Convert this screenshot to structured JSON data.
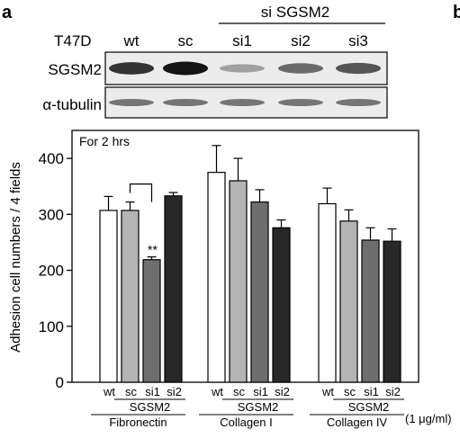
{
  "panel_labels": {
    "a": "a",
    "b": "b"
  },
  "blot": {
    "cell_line": "T47D",
    "lane_labels": [
      "wt",
      "sc",
      "si1",
      "si2",
      "si3"
    ],
    "group_label": "si SGSM2",
    "rows": [
      {
        "label": "SGSM2",
        "band_intensity": [
          0.85,
          1.0,
          0.35,
          0.6,
          0.7
        ]
      },
      {
        "label": "α-tubulin",
        "band_intensity": [
          0.55,
          0.55,
          0.55,
          0.55,
          0.55
        ]
      }
    ]
  },
  "chart_data": {
    "type": "bar",
    "title": "For 2 hrs",
    "ylabel": "Adhesion cell numbers / 4 fields",
    "ylim": [
      0,
      450
    ],
    "yticks": [
      "0",
      "100",
      "200",
      "300",
      "400"
    ],
    "unit_note": "(1 μg/ml)",
    "bar_labels": [
      "wt",
      "sc",
      "si1",
      "si2"
    ],
    "sub_label": "SGSM2",
    "colors": [
      "#ffffff",
      "#b4b4b4",
      "#6e6e6e",
      "#282828"
    ],
    "groups": [
      {
        "label": "Fibronectin",
        "values": [
          307,
          307,
          219,
          333
        ],
        "errors": [
          25,
          15,
          5,
          6
        ]
      },
      {
        "label": "Collagen I",
        "values": [
          375,
          360,
          322,
          276
        ],
        "errors": [
          48,
          40,
          22,
          14
        ]
      },
      {
        "label": "Collagen IV",
        "values": [
          319,
          288,
          254,
          252
        ],
        "errors": [
          28,
          20,
          22,
          22
        ]
      }
    ],
    "annotation": {
      "text": "**",
      "group": 0,
      "compare": [
        1,
        2
      ]
    }
  }
}
